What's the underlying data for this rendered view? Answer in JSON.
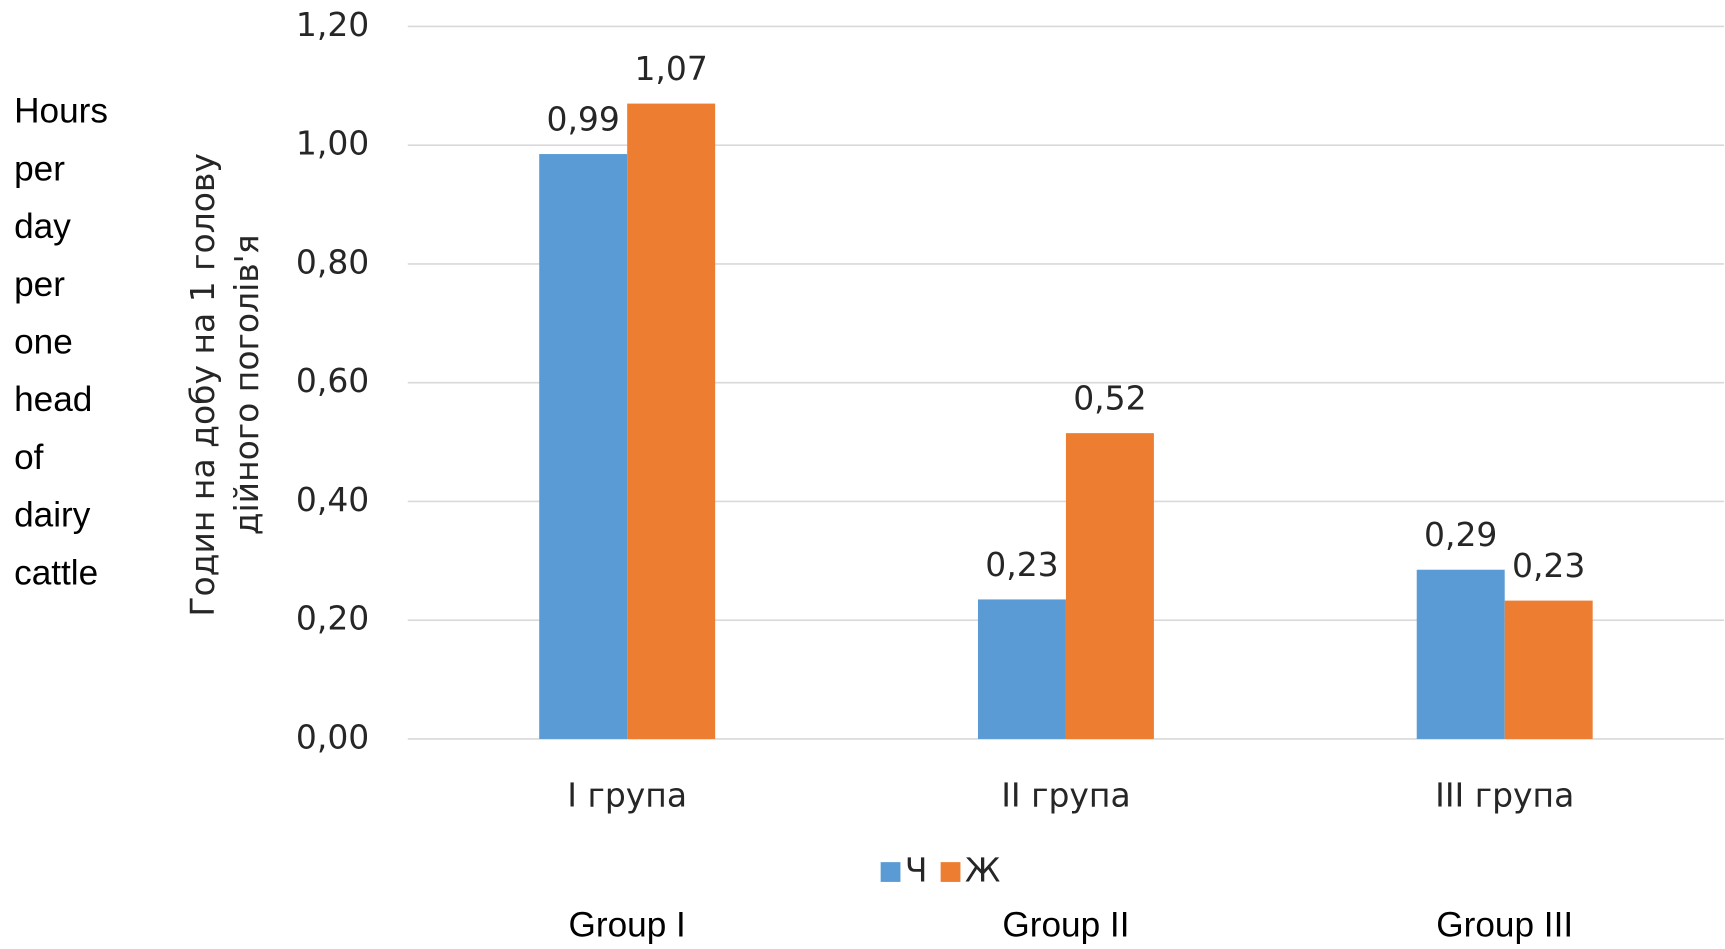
{
  "chart_data": {
    "type": "bar",
    "categories": [
      "I група",
      "II група",
      "III група"
    ],
    "series": [
      {
        "name": "Ч",
        "color": "#5b9bd5",
        "values": [
          0.985,
          0.235,
          0.285
        ],
        "value_labels": [
          "0,99",
          "0,23",
          "0,29"
        ]
      },
      {
        "name": "Ж",
        "color": "#ed7d31",
        "values": [
          1.07,
          0.515,
          0.233
        ],
        "value_labels": [
          "1,07",
          "0,52",
          "0,23"
        ]
      }
    ],
    "ylim": [
      0,
      1.2
    ],
    "yticks": [
      {
        "value": 0,
        "label": "0,00"
      },
      {
        "value": 0.2,
        "label": "0,20"
      },
      {
        "value": 0.4,
        "label": "0,40"
      },
      {
        "value": 0.6,
        "label": "0,60"
      },
      {
        "value": 0.8,
        "label": "0,80"
      },
      {
        "value": 1.0,
        "label": "1,00"
      },
      {
        "value": 1.2,
        "label": "1,20"
      }
    ],
    "ylabel_lines": [
      "Годин на добу на 1 голову",
      "дійного поголів'я"
    ],
    "side_note_lines": [
      "Hours",
      "per",
      "day",
      "per",
      "one",
      "head",
      "of",
      "dairy",
      "cattle"
    ],
    "group_labels": [
      "Group I",
      "Group II",
      "Group III"
    ],
    "grid": true
  }
}
